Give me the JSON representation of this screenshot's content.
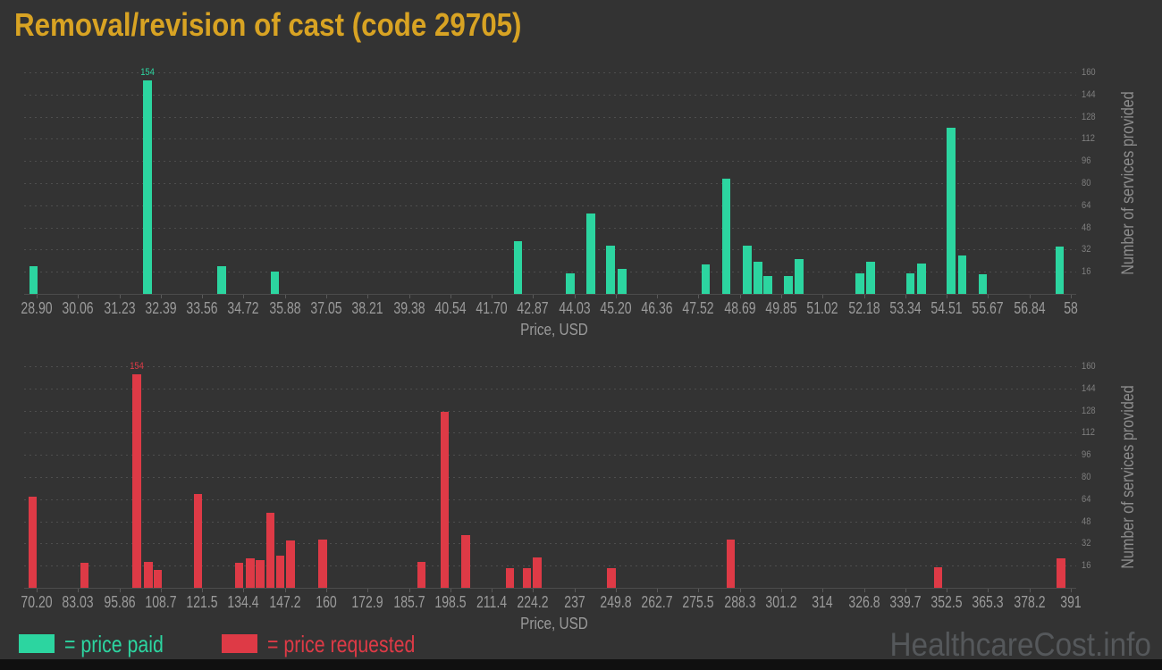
{
  "title": "Removal/revision of cast (code 29705)",
  "watermark": "HealthcareCost.info",
  "colors": {
    "background": "#333333",
    "title": "#d8a323",
    "paid": "#2cd5a0",
    "requested": "#de3a46",
    "grid": "#4e4e4e",
    "tick_label": "#9a9a9a",
    "y_tick_label": "#7e7e7e"
  },
  "legend": {
    "items": [
      {
        "label": "= price paid",
        "color": "#2cd5a0"
      },
      {
        "label": "= price requested",
        "color": "#de3a46"
      }
    ]
  },
  "chart_data": [
    {
      "type": "bar",
      "name": "price paid",
      "color": "#2cd5a0",
      "xlabel": "Price, USD",
      "ylabel": "Number of services provided",
      "x_tick_labels": [
        "28.90",
        "30.06",
        "31.23",
        "32.39",
        "33.56",
        "34.72",
        "35.88",
        "37.05",
        "38.21",
        "39.38",
        "40.54",
        "41.70",
        "42.87",
        "44.03",
        "45.20",
        "46.36",
        "47.52",
        "48.69",
        "49.85",
        "51.02",
        "52.18",
        "53.34",
        "54.51",
        "55.67",
        "56.84",
        "58"
      ],
      "x_range": [
        28.9,
        58.0
      ],
      "y_tick_labels": [
        "16",
        "32",
        "48",
        "64",
        "80",
        "96",
        "112",
        "128",
        "144",
        "160"
      ],
      "y_range": [
        0,
        160
      ],
      "grid": true,
      "annotation": {
        "x": 32.02,
        "text": "154"
      },
      "bars": [
        {
          "x": 28.81,
          "count": 20
        },
        {
          "x": 32.02,
          "count": 154
        },
        {
          "x": 34.11,
          "count": 20
        },
        {
          "x": 35.6,
          "count": 16
        },
        {
          "x": 42.45,
          "count": 38
        },
        {
          "x": 43.91,
          "count": 15
        },
        {
          "x": 44.5,
          "count": 58
        },
        {
          "x": 45.05,
          "count": 35
        },
        {
          "x": 45.37,
          "count": 18
        },
        {
          "x": 47.72,
          "count": 21
        },
        {
          "x": 48.3,
          "count": 83
        },
        {
          "x": 48.9,
          "count": 35
        },
        {
          "x": 49.2,
          "count": 23
        },
        {
          "x": 49.48,
          "count": 13
        },
        {
          "x": 50.05,
          "count": 13
        },
        {
          "x": 50.35,
          "count": 25
        },
        {
          "x": 52.07,
          "count": 15
        },
        {
          "x": 52.37,
          "count": 23
        },
        {
          "x": 53.48,
          "count": 15
        },
        {
          "x": 53.8,
          "count": 22
        },
        {
          "x": 54.63,
          "count": 120
        },
        {
          "x": 54.95,
          "count": 28
        },
        {
          "x": 55.52,
          "count": 14
        },
        {
          "x": 57.68,
          "count": 34
        }
      ]
    },
    {
      "type": "bar",
      "name": "price requested",
      "color": "#de3a46",
      "xlabel": "Price, USD",
      "ylabel": "Number of services provided",
      "x_tick_labels": [
        "70.20",
        "83.03",
        "95.86",
        "108.7",
        "121.5",
        "134.4",
        "147.2",
        "160",
        "172.9",
        "185.7",
        "198.5",
        "211.4",
        "224.2",
        "237",
        "249.8",
        "262.7",
        "275.5",
        "288.3",
        "301.2",
        "314",
        "326.8",
        "339.7",
        "352.5",
        "365.3",
        "378.2",
        "391"
      ],
      "x_range": [
        70.2,
        391.0
      ],
      "y_tick_labels": [
        "16",
        "32",
        "48",
        "64",
        "80",
        "96",
        "112",
        "128",
        "144",
        "160"
      ],
      "y_range": [
        0,
        160
      ],
      "grid": true,
      "annotation": {
        "x": 101.3,
        "text": "154"
      },
      "bars": [
        {
          "x": 69.0,
          "count": 66
        },
        {
          "x": 85.0,
          "count": 18
        },
        {
          "x": 101.3,
          "count": 154
        },
        {
          "x": 104.8,
          "count": 19
        },
        {
          "x": 107.8,
          "count": 13
        },
        {
          "x": 120.3,
          "count": 68
        },
        {
          "x": 133.0,
          "count": 18
        },
        {
          "x": 136.5,
          "count": 21
        },
        {
          "x": 139.5,
          "count": 20
        },
        {
          "x": 142.7,
          "count": 54
        },
        {
          "x": 145.8,
          "count": 23
        },
        {
          "x": 149.0,
          "count": 34
        },
        {
          "x": 158.9,
          "count": 35
        },
        {
          "x": 189.5,
          "count": 19
        },
        {
          "x": 196.8,
          "count": 127
        },
        {
          "x": 203.3,
          "count": 38
        },
        {
          "x": 217.0,
          "count": 14
        },
        {
          "x": 222.3,
          "count": 14
        },
        {
          "x": 225.5,
          "count": 22
        },
        {
          "x": 248.5,
          "count": 14
        },
        {
          "x": 285.5,
          "count": 35
        },
        {
          "x": 349.8,
          "count": 15
        },
        {
          "x": 388.0,
          "count": 21
        }
      ]
    }
  ]
}
